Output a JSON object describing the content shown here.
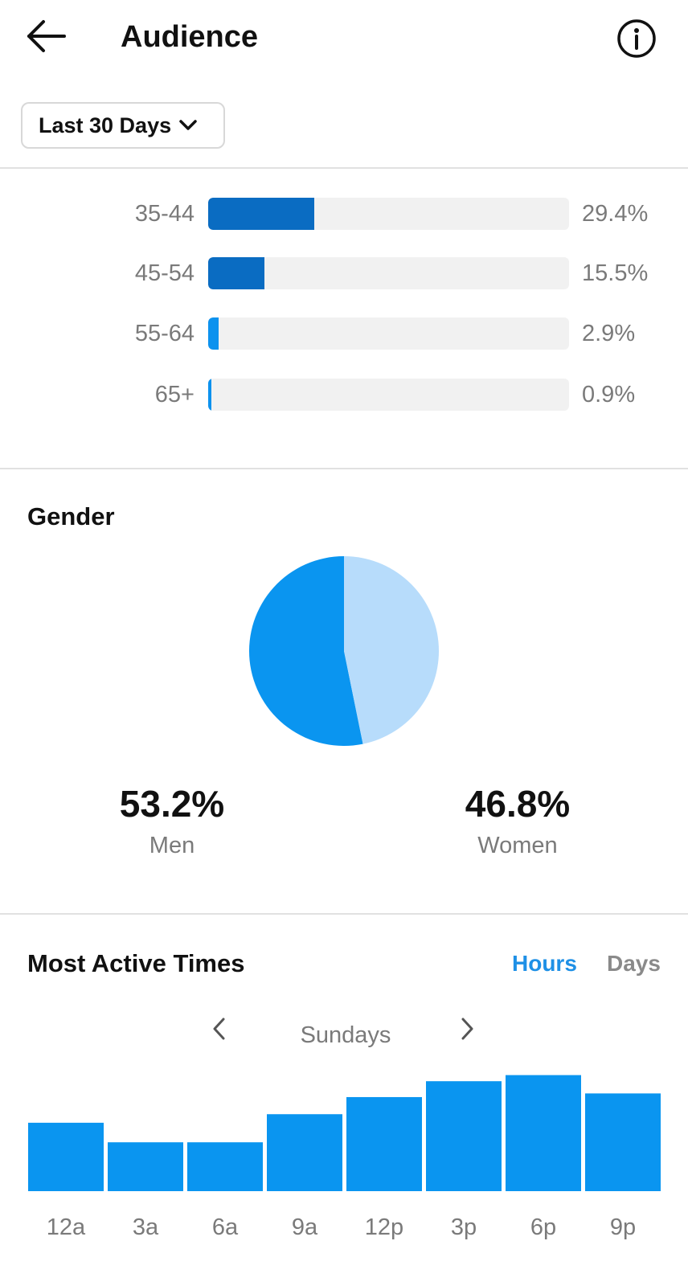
{
  "header": {
    "title": "Audience"
  },
  "filter": {
    "selected": "Last 30 Days"
  },
  "age_range": {
    "rows": [
      {
        "label": "35-44",
        "percent": 29.4,
        "display": "29.4%"
      },
      {
        "label": "45-54",
        "percent": 15.5,
        "display": "15.5%"
      },
      {
        "label": "55-64",
        "percent": 2.9,
        "display": "2.9%"
      },
      {
        "label": "65+",
        "percent": 0.9,
        "display": "0.9%"
      }
    ]
  },
  "gender": {
    "title": "Gender",
    "men": {
      "value": "53.2%",
      "label": "Men"
    },
    "women": {
      "value": "46.8%",
      "label": "Women"
    }
  },
  "active_times": {
    "title": "Most Active Times",
    "tabs": {
      "hours": "Hours",
      "days": "Days"
    },
    "day_label": "Sundays"
  },
  "colors": {
    "bar_dark": "#0a6cc2",
    "bar_light": "#0d92ee",
    "men": "#0a95f0",
    "women": "#b7dcfb",
    "activity": "#0a95f0"
  },
  "chart_data": [
    {
      "type": "bar",
      "orientation": "horizontal",
      "categories": [
        "35-44",
        "45-54",
        "55-64",
        "65+"
      ],
      "values": [
        29.4,
        15.5,
        2.9,
        0.9
      ],
      "xlim": [
        0,
        100
      ]
    },
    {
      "type": "pie",
      "title": "Gender",
      "categories": [
        "Men",
        "Women"
      ],
      "values": [
        53.2,
        46.8
      ]
    },
    {
      "type": "bar",
      "title": "Most Active Times",
      "categories": [
        "12a",
        "3a",
        "6a",
        "9a",
        "12p",
        "3p",
        "6p",
        "9p"
      ],
      "values": [
        0.56,
        0.4,
        0.4,
        0.63,
        0.77,
        0.9,
        0.95,
        0.8
      ],
      "ylim": [
        0,
        1
      ]
    }
  ]
}
